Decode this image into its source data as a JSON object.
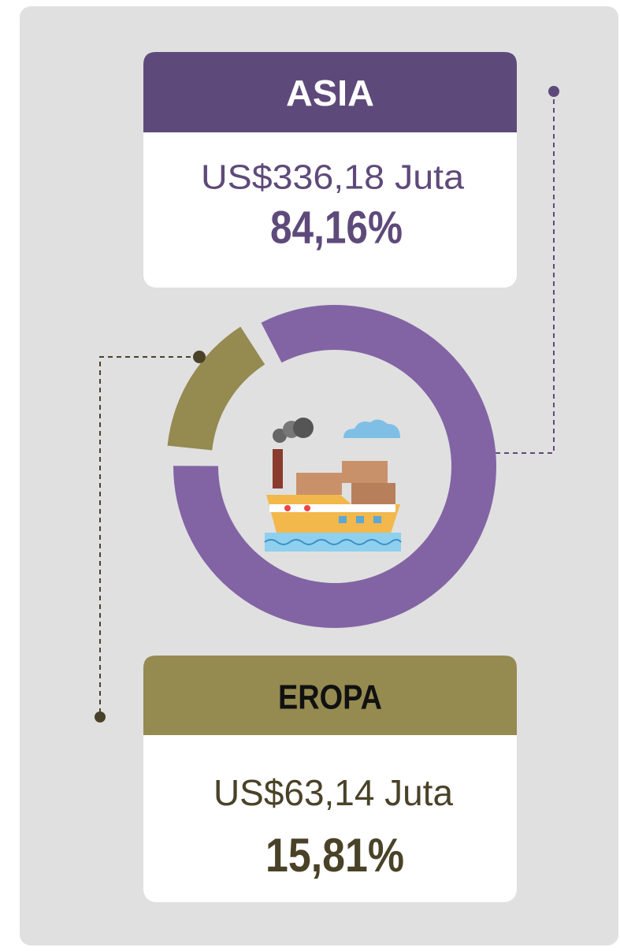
{
  "chart_data": {
    "type": "donut",
    "categories": [
      "ASIA",
      "EROPA"
    ],
    "values": [
      84.16,
      15.81
    ],
    "value_labels": [
      "84,16%",
      "15,81%"
    ],
    "amount_labels": [
      "US$336,18 Juta",
      "US$63,14 Juta"
    ],
    "colors": [
      "#8264a4",
      "#958a50"
    ]
  }
}
